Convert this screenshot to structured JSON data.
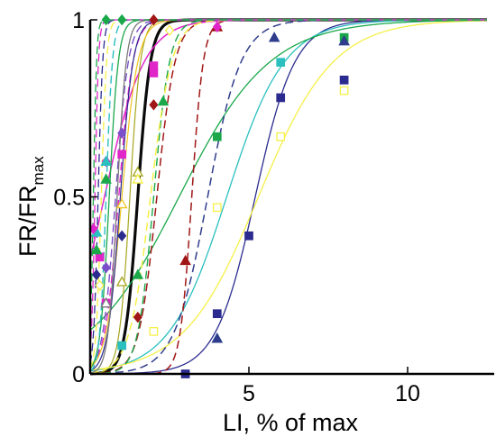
{
  "chart_data": {
    "type": "line",
    "xlabel": "LI, % of max",
    "ylabel_main": "FR/FR",
    "ylabel_sub": "max",
    "xlim": [
      0,
      12.5
    ],
    "ylim": [
      0,
      1
    ],
    "x_ticks": [
      {
        "value": 5,
        "label": "5"
      },
      {
        "value": 10,
        "label": "10"
      }
    ],
    "y_ticks": [
      {
        "value": 0,
        "label": "0"
      },
      {
        "value": 0.5,
        "label": "0.5"
      },
      {
        "value": 1,
        "label": "1"
      }
    ],
    "grid": false,
    "legend": "none",
    "series": [
      {
        "color": "#0a0a0a",
        "style": "solid",
        "width": 3.2,
        "x50": 1.5,
        "k": 5.0,
        "points": []
      },
      {
        "color": "#2b2b8f",
        "style": "solid",
        "width": 1.3,
        "x50": 5.2,
        "k": 1.6,
        "points": [
          {
            "x": 3,
            "y": 0.0,
            "m": "square"
          },
          {
            "x": 4,
            "y": 0.17,
            "m": "square"
          },
          {
            "x": 5,
            "y": 0.39,
            "m": "square"
          },
          {
            "x": 6,
            "y": 0.78,
            "m": "square"
          },
          {
            "x": 8,
            "y": 0.83,
            "m": "square"
          }
        ]
      },
      {
        "color": "#2bbfbf",
        "style": "solid",
        "width": 1.3,
        "x50": 4.3,
        "k": 1.1,
        "points": [
          {
            "x": 4,
            "y": 0.1,
            "m": "triangle"
          },
          {
            "x": 6,
            "y": 0.88,
            "m": "square"
          },
          {
            "x": 1,
            "y": 0.08,
            "m": "square"
          }
        ]
      },
      {
        "color": "#f5f047",
        "style": "solid",
        "width": 1.3,
        "x50": 5.3,
        "k": 0.85,
        "points": [
          {
            "x": 2,
            "y": 0.12,
            "m": "square-open"
          },
          {
            "x": 4,
            "y": 0.47,
            "m": "square-open"
          },
          {
            "x": 6,
            "y": 0.67,
            "m": "square-open"
          },
          {
            "x": 8,
            "y": 0.8,
            "m": "square-open"
          }
        ]
      },
      {
        "color": "#1aa84a",
        "style": "solid",
        "width": 1.3,
        "x50": 2.8,
        "k": 0.7,
        "points": [
          {
            "x": 4,
            "y": 0.67,
            "m": "square"
          },
          {
            "x": 8,
            "y": 0.95,
            "m": "square"
          }
        ]
      },
      {
        "color": "#2f3d8c",
        "style": "dashed",
        "width": 1.5,
        "x50": 3.7,
        "k": 1.9,
        "points": [
          {
            "x": 4,
            "y": 0.1,
            "m": "triangle"
          },
          {
            "x": 5.8,
            "y": 0.95,
            "m": "triangle"
          },
          {
            "x": 8,
            "y": 0.94,
            "m": "triangle"
          }
        ]
      },
      {
        "color": "#a01616",
        "style": "dashed",
        "width": 1.5,
        "x50": 3.2,
        "k": 5.5,
        "points": [
          {
            "x": 3,
            "y": 0.32,
            "m": "triangle"
          },
          {
            "x": 4,
            "y": 0.98,
            "m": "triangle"
          }
        ]
      },
      {
        "color": "#a01616",
        "style": "dashed",
        "width": 1.5,
        "x50": 2.1,
        "k": 3.5,
        "points": [
          {
            "x": 1.5,
            "y": 0.16,
            "m": "diamond"
          },
          {
            "x": 2,
            "y": 0.76,
            "m": "diamond"
          },
          {
            "x": 2,
            "y": 1.0,
            "m": "diamond"
          }
        ]
      },
      {
        "color": "#e026c8",
        "style": "solid",
        "width": 1.5,
        "x50": 0.45,
        "k": 1.6,
        "points": [
          {
            "x": 0.3,
            "y": 0.33,
            "m": "square"
          },
          {
            "x": 0.5,
            "y": 0.6,
            "m": "diamond"
          },
          {
            "x": 2,
            "y": 0.87,
            "m": "square"
          },
          {
            "x": 4,
            "y": 0.98,
            "m": "diamond"
          }
        ]
      },
      {
        "color": "#e026c8",
        "style": "dashed",
        "width": 1.4,
        "x50": 0.9,
        "k": 4.5,
        "points": [
          {
            "x": 0.5,
            "y": 0.2,
            "m": "square"
          },
          {
            "x": 1,
            "y": 0.62,
            "m": "square"
          },
          {
            "x": 2,
            "y": 0.85,
            "m": "square"
          }
        ]
      },
      {
        "color": "#7b4fc9",
        "style": "dashed",
        "width": 1.4,
        "x50": 0.8,
        "k": 5.0,
        "points": [
          {
            "x": 0.5,
            "y": 0.3,
            "m": "diamond"
          },
          {
            "x": 1,
            "y": 0.68,
            "m": "diamond"
          }
        ]
      },
      {
        "color": "#1aa84a",
        "style": "dashed",
        "width": 1.4,
        "x50": 2.0,
        "k": 4.0,
        "points": [
          {
            "x": 1.5,
            "y": 0.28,
            "m": "triangle"
          },
          {
            "x": 2.3,
            "y": 0.77,
            "m": "triangle"
          }
        ]
      },
      {
        "color": "#a6a620",
        "style": "solid",
        "width": 1.2,
        "x50": 1.25,
        "k": 6.0,
        "points": [
          {
            "x": 1,
            "y": 0.26,
            "m": "triangle-open"
          },
          {
            "x": 1.5,
            "y": 0.57,
            "m": "triangle-open"
          }
        ]
      },
      {
        "color": "#f5f047",
        "style": "dashed",
        "width": 1.5,
        "x50": 1.9,
        "k": 3.0,
        "points": [
          {
            "x": 1.5,
            "y": 0.55,
            "m": "triangle-open"
          },
          {
            "x": 2.5,
            "y": 0.97,
            "m": "diamond-open"
          }
        ]
      },
      {
        "color": "#f0c420",
        "style": "solid",
        "width": 1.2,
        "x50": 1.0,
        "k": 4.0,
        "points": [
          {
            "x": 1,
            "y": 0.48,
            "m": "triangle-open"
          }
        ]
      },
      {
        "color": "#2b2b8f",
        "style": "solid",
        "width": 1.2,
        "x50": 0.95,
        "k": 5.0,
        "points": [
          {
            "x": 1,
            "y": 0.39,
            "m": "diamond"
          }
        ]
      },
      {
        "color": "#7a7a7a",
        "style": "solid",
        "width": 1.3,
        "x50": 0.85,
        "k": 7.0,
        "points": [
          {
            "x": 0.5,
            "y": 0.2,
            "m": "triangle-open"
          }
        ]
      },
      {
        "color": "#1aa84a",
        "style": "solid",
        "width": 1.3,
        "x50": 0.6,
        "k": 7.0,
        "points": [
          {
            "x": 0.5,
            "y": 0.55,
            "m": "triangle"
          }
        ]
      },
      {
        "color": "#2bbfbf",
        "style": "dashed",
        "width": 1.4,
        "x50": 0.5,
        "k": 10.0,
        "points": [
          {
            "x": 0.2,
            "y": 0.4,
            "m": "triangle"
          },
          {
            "x": 0.5,
            "y": 0.6,
            "m": "triangle"
          }
        ]
      },
      {
        "color": "#f5f047",
        "style": "dashed",
        "width": 1.3,
        "x50": 0.35,
        "k": 12.0,
        "points": [
          {
            "x": 0.3,
            "y": 0.25,
            "m": "diamond-open"
          }
        ]
      },
      {
        "color": "#2b2b8f",
        "style": "dashed",
        "width": 1.3,
        "x50": 0.25,
        "k": 14.0,
        "points": [
          {
            "x": 0.2,
            "y": 0.28,
            "m": "diamond"
          }
        ]
      },
      {
        "color": "#e026c8",
        "style": "dashed",
        "width": 1.3,
        "x50": 0.15,
        "k": 18.0,
        "points": [
          {
            "x": 0.1,
            "y": 0.41,
            "m": "diamond"
          }
        ]
      },
      {
        "color": "#1aa84a",
        "style": "dashed",
        "width": 1.3,
        "x50": 0.1,
        "k": 20.0,
        "points": [
          {
            "x": 0.2,
            "y": 0.35,
            "m": "triangle"
          },
          {
            "x": 0.5,
            "y": 1.0,
            "m": "diamond"
          },
          {
            "x": 1,
            "y": 1.0,
            "m": "diamond"
          }
        ]
      }
    ]
  }
}
